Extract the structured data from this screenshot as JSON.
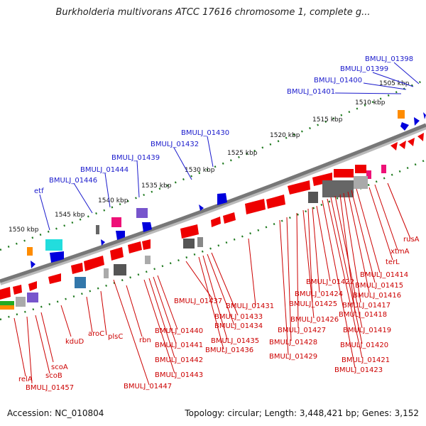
{
  "title": "Burkholderia multivorans ATCC 17616 chromosome 1, complete g...",
  "footer": {
    "accession": "Accession: NC_010804",
    "summary": "Topology: circular; Length: 3,448,421 bp; Genes: 3,152"
  },
  "colors": {
    "backbone": "#808080",
    "tick": "#1f7a1f",
    "gene_label_forward": "#1a1acc",
    "gene_label_reverse": "#cc0000",
    "forward_gene": "#0000dd",
    "reverse_gene": "#ee0000",
    "rna": "#ff8c00",
    "other": "#888888"
  },
  "scale_labels": [
    "1505 kbp",
    "1510 kbp",
    "1515 kbp",
    "1520 kbp",
    "1525 kbp",
    "1530 kbp",
    "1535 kbp",
    "1540 kbp",
    "1545 kbp",
    "1550 kbp"
  ],
  "forward_labels": [
    "BMULJ_01398",
    "BMULJ_01399",
    "BMULJ_01400",
    "BMULJ_01401",
    "BMULJ_01430",
    "BMULJ_01432",
    "BMULJ_01439",
    "BMULJ_01444",
    "BMULJ_01446",
    "etf"
  ],
  "reverse_labels": [
    "rusA",
    "xtmA",
    "terL",
    "BMULJ_01414",
    "BMULJ_01415",
    "BMULJ_01416",
    "BMULJ_01417",
    "BMULJ_01418",
    "BMULJ_01419",
    "BMULJ_01420",
    "BMULJ_01421",
    "BMULJ_01423",
    "BMULJ_01422",
    "BMULJ_01424",
    "BMULJ_01425",
    "BMULJ_01426",
    "BMULJ_01427",
    "BMULJ_01428",
    "BMULJ_01429",
    "BMULJ_01431",
    "BMULJ_01433",
    "BMULJ_01434",
    "BMULJ_01435",
    "BMULJ_01436",
    "BMULJ_01437",
    "BMULJ_01440",
    "BMULJ_01441",
    "BMULJ_01442",
    "BMULJ_01443",
    "BMULJ_01447",
    "rbn",
    "plsC",
    "aroC",
    "kduD",
    "scoA",
    "scoB",
    "relA",
    "BMULJ_01457"
  ]
}
